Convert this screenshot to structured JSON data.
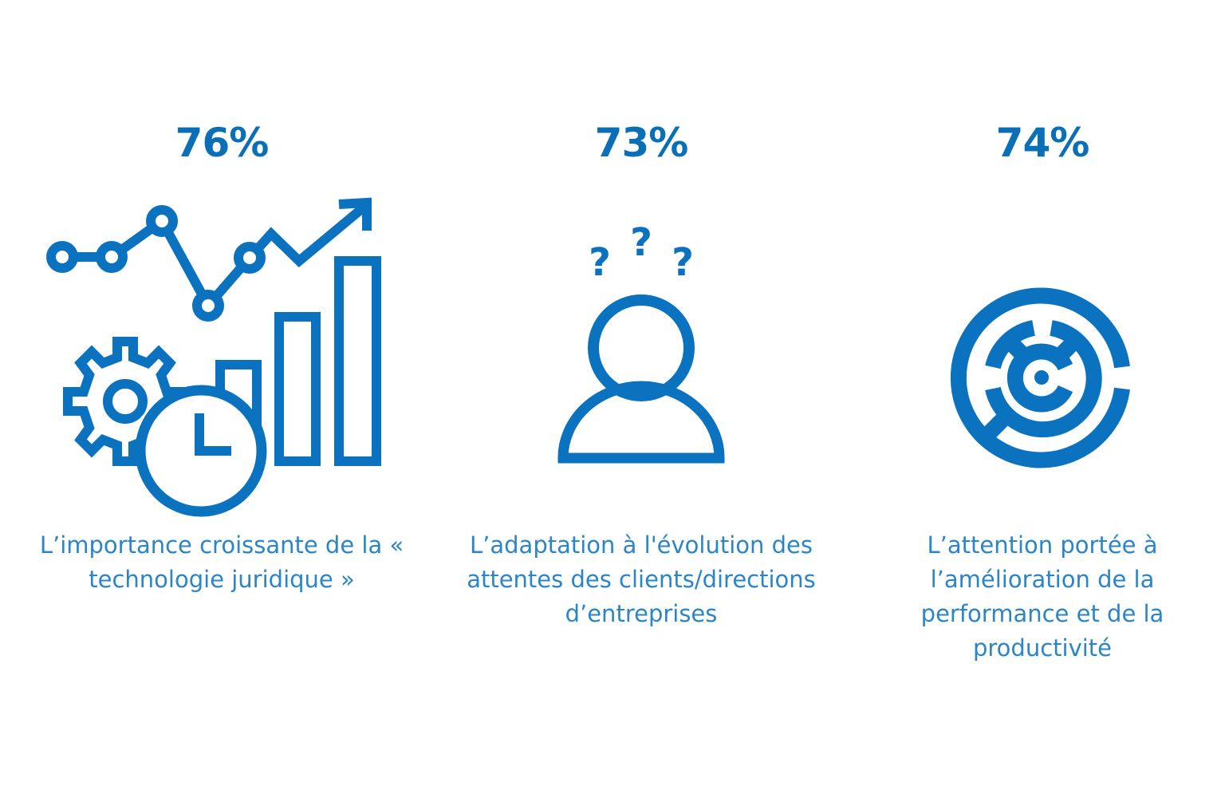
{
  "accent_color": "#0b72bf",
  "items": [
    {
      "percent": "76%",
      "icon": "chart-gear-clock-icon",
      "caption": "L’importance croissante de la « technologie juridique »"
    },
    {
      "percent": "73%",
      "icon": "confused-person-icon",
      "caption": "L’adaptation à l'évolution des attentes des clients/directions d’entreprises"
    },
    {
      "percent": "74%",
      "icon": "maze-target-icon",
      "caption": "L’attention portée à l’amélioration de la performance et de la productivité"
    }
  ]
}
